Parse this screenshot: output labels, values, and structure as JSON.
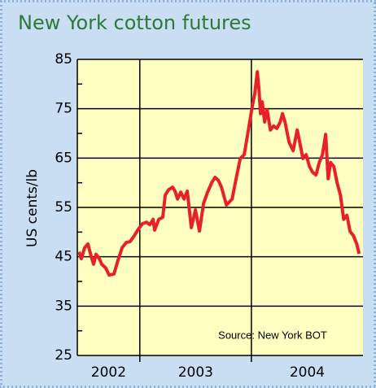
{
  "chart_data": {
    "type": "line",
    "title": "New York cotton futures",
    "y_label": "US cents/lb",
    "annotation": "Source: New York BOT",
    "series": [
      {
        "name": "cotton",
        "color": "#e8202a",
        "x": [
          2002.455,
          2002.476,
          2002.506,
          2002.535,
          2002.564,
          2002.586,
          2002.608,
          2002.637,
          2002.659,
          2002.695,
          2002.725,
          2002.768,
          2002.805,
          2002.841,
          2002.878,
          2002.914,
          2002.951,
          2002.987,
          2003.024,
          2003.06,
          2003.09,
          2003.119,
          2003.133,
          2003.17,
          2003.206,
          2003.228,
          2003.258,
          2003.294,
          2003.316,
          2003.338,
          2003.367,
          2003.396,
          2003.425,
          2003.462,
          2003.498,
          2003.535,
          2003.571,
          2003.608,
          2003.644,
          2003.674,
          2003.703,
          2003.732,
          2003.776,
          2003.827,
          2003.863,
          2003.9,
          2003.936,
          2003.973,
          2004.009,
          2004.031,
          2004.053,
          2004.068,
          2004.082,
          2004.097,
          2004.119,
          2004.141,
          2004.17,
          2004.199,
          2004.228,
          2004.258,
          2004.279,
          2004.301,
          2004.338,
          2004.374,
          2004.411,
          2004.433,
          2004.462,
          2004.491,
          2004.52,
          2004.549,
          2004.579,
          2004.608,
          2004.637,
          2004.666,
          2004.688,
          2004.71,
          2004.739,
          2004.768,
          2004.798,
          2004.827,
          2004.856,
          2004.885,
          2004.914,
          2004.944,
          2004.966
        ],
        "values": [
          46,
          44.6,
          46.8,
          47.6,
          45.1,
          43.5,
          45.5,
          44.6,
          43.5,
          42.7,
          41.3,
          41.5,
          44.3,
          46.8,
          47.9,
          48.1,
          49.3,
          50.6,
          51.7,
          52,
          51.5,
          52.6,
          50.4,
          52.6,
          53,
          57.5,
          58.6,
          59.1,
          58.3,
          56.7,
          58.1,
          56.7,
          58.3,
          50.9,
          54.5,
          50.2,
          55.8,
          58.1,
          60,
          61.1,
          60.5,
          59.1,
          55.5,
          56.7,
          60.8,
          64.9,
          65.7,
          70.7,
          75.6,
          78.1,
          82.5,
          78.9,
          74,
          76.4,
          72.3,
          74.8,
          70.7,
          71.5,
          71,
          72.3,
          74,
          72.3,
          68.2,
          66.5,
          70.7,
          68.2,
          64.9,
          65.7,
          63.3,
          62.1,
          61.6,
          64.1,
          65.7,
          69.8,
          60.8,
          64.1,
          63.3,
          60,
          57.5,
          52.6,
          53.4,
          50.1,
          49.3,
          47.6,
          45.6
        ]
      }
    ],
    "xlim": [
      2002.44,
      2005.0
    ],
    "xticks": [
      2002,
      2003,
      2004
    ],
    "ylim": [
      25,
      85
    ],
    "yticks": [
      25,
      35,
      45,
      55,
      65,
      75,
      85
    ],
    "grid": true
  }
}
